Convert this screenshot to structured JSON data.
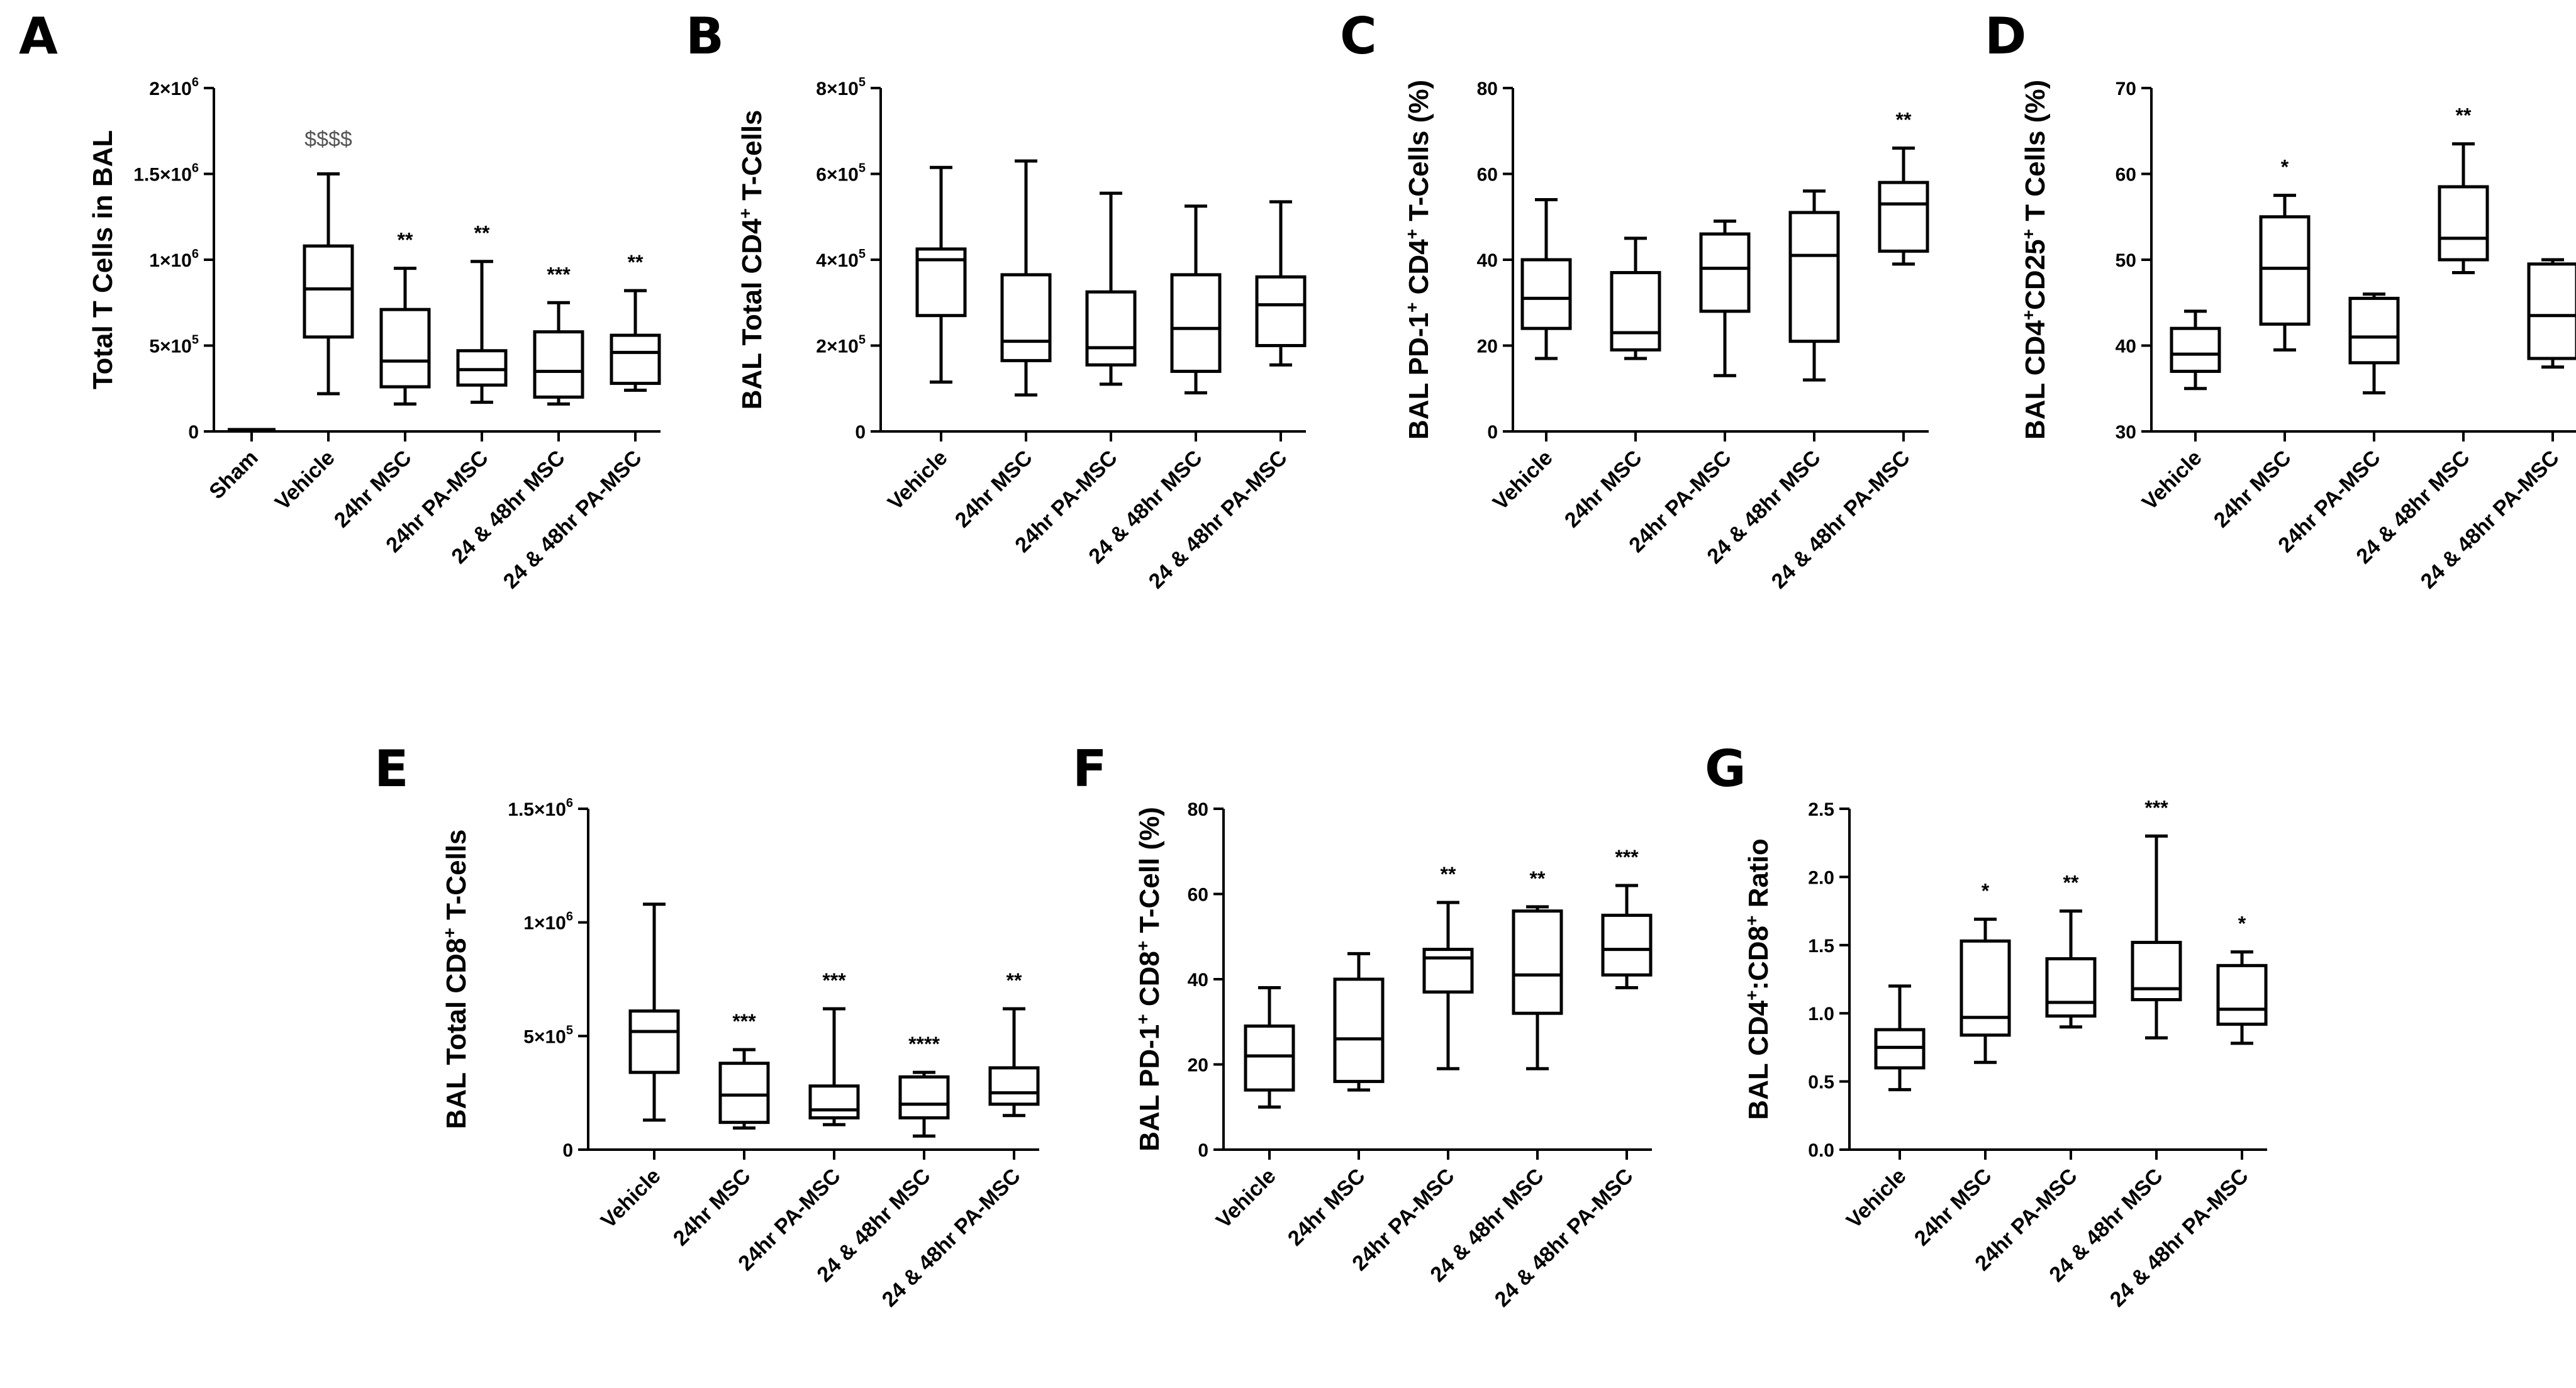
{
  "chart_data": [
    {
      "panel": "A",
      "type": "box",
      "ylabel": "Total T Cells in BAL",
      "ylim": [
        0,
        2000000
      ],
      "yticks": [
        {
          "value": 0,
          "mant": "0",
          "exp": ""
        },
        {
          "value": 500000,
          "mant": "5×10",
          "exp": "5"
        },
        {
          "value": 1000000,
          "mant": "1×10",
          "exp": "6"
        },
        {
          "value": 1500000,
          "mant": "1.5×10",
          "exp": "6"
        },
        {
          "value": 2000000,
          "mant": "2×10",
          "exp": "6"
        }
      ],
      "categories": [
        "Sham",
        "Vehicle",
        "24hr MSC",
        "24hr PA-MSC",
        "24 & 48hr MSC",
        "24 & 48hr PA-MSC"
      ],
      "boxes": [
        {
          "min": 0,
          "q1": 0,
          "median": 0,
          "q3": 0,
          "max": 0
        },
        {
          "min": 220000,
          "q1": 550000,
          "median": 830000,
          "q3": 1080000,
          "max": 1500000
        },
        {
          "min": 160000,
          "q1": 260000,
          "median": 410000,
          "q3": 710000,
          "max": 950000
        },
        {
          "min": 170000,
          "q1": 270000,
          "median": 360000,
          "q3": 470000,
          "max": 990000
        },
        {
          "min": 160000,
          "q1": 200000,
          "median": 350000,
          "q3": 580000,
          "max": 750000
        },
        {
          "min": 240000,
          "q1": 280000,
          "median": 460000,
          "q3": 560000,
          "max": 820000
        }
      ],
      "annotations": [
        "",
        "$$$$",
        "**",
        "**",
        "***",
        "**"
      ]
    },
    {
      "panel": "B",
      "type": "box",
      "ylabel": "BAL Total CD4",
      "ylabel_sup": "+",
      "ylabel_tail": " T-Cells",
      "ylim": [
        0,
        800000
      ],
      "yticks": [
        {
          "value": 0,
          "mant": "0",
          "exp": ""
        },
        {
          "value": 200000,
          "mant": "2×10",
          "exp": "5"
        },
        {
          "value": 400000,
          "mant": "4×10",
          "exp": "5"
        },
        {
          "value": 600000,
          "mant": "6×10",
          "exp": "5"
        },
        {
          "value": 800000,
          "mant": "8×10",
          "exp": "5"
        }
      ],
      "categories": [
        "Vehicle",
        "24hr MSC",
        "24hr PA-MSC",
        "24 & 48hr MSC",
        "24 & 48hr PA-MSC"
      ],
      "boxes": [
        {
          "min": 115000,
          "q1": 270000,
          "median": 400000,
          "q3": 425000,
          "max": 615000
        },
        {
          "min": 85000,
          "q1": 165000,
          "median": 210000,
          "q3": 365000,
          "max": 630000
        },
        {
          "min": 110000,
          "q1": 155000,
          "median": 195000,
          "q3": 325000,
          "max": 555000
        },
        {
          "min": 90000,
          "q1": 140000,
          "median": 240000,
          "q3": 365000,
          "max": 525000
        },
        {
          "min": 155000,
          "q1": 200000,
          "median": 295000,
          "q3": 360000,
          "max": 535000
        }
      ],
      "annotations": [
        "",
        "",
        "",
        "",
        ""
      ]
    },
    {
      "panel": "C",
      "type": "box",
      "ylabel": "BAL PD-1",
      "ylabel_sup": "+",
      "ylabel_tail": " CD4",
      "ylabel_sup2": "+",
      "ylabel_tail2": " T-Cells (%)",
      "ylim": [
        0,
        80
      ],
      "yticks": [
        {
          "value": 0,
          "mant": "0",
          "exp": ""
        },
        {
          "value": 20,
          "mant": "20",
          "exp": ""
        },
        {
          "value": 40,
          "mant": "40",
          "exp": ""
        },
        {
          "value": 60,
          "mant": "60",
          "exp": ""
        },
        {
          "value": 80,
          "mant": "80",
          "exp": ""
        }
      ],
      "categories": [
        "Vehicle",
        "24hr MSC",
        "24hr PA-MSC",
        "24 & 48hr MSC",
        "24 & 48hr PA-MSC"
      ],
      "boxes": [
        {
          "min": 17,
          "q1": 24,
          "median": 31,
          "q3": 40,
          "max": 54
        },
        {
          "min": 17,
          "q1": 19,
          "median": 23,
          "q3": 37,
          "max": 45
        },
        {
          "min": 13,
          "q1": 28,
          "median": 38,
          "q3": 46,
          "max": 49
        },
        {
          "min": 12,
          "q1": 21,
          "median": 41,
          "q3": 51,
          "max": 56
        },
        {
          "min": 39,
          "q1": 42,
          "median": 53,
          "q3": 58,
          "max": 66
        }
      ],
      "annotations": [
        "",
        "",
        "",
        "",
        "**"
      ]
    },
    {
      "panel": "D",
      "type": "box",
      "ylabel": "BAL CD4",
      "ylabel_sup": "+",
      "ylabel_tail": "CD25",
      "ylabel_sup2": "+",
      "ylabel_tail2": " T Cells (%)",
      "ylim": [
        30,
        70
      ],
      "yticks": [
        {
          "value": 30,
          "mant": "30",
          "exp": ""
        },
        {
          "value": 40,
          "mant": "40",
          "exp": ""
        },
        {
          "value": 50,
          "mant": "50",
          "exp": ""
        },
        {
          "value": 60,
          "mant": "60",
          "exp": ""
        },
        {
          "value": 70,
          "mant": "70",
          "exp": ""
        }
      ],
      "categories": [
        "Vehicle",
        "24hr MSC",
        "24hr PA-MSC",
        "24 & 48hr MSC",
        "24 & 48hr PA-MSC"
      ],
      "boxes": [
        {
          "min": 35,
          "q1": 37,
          "median": 39,
          "q3": 42,
          "max": 44
        },
        {
          "min": 39.5,
          "q1": 42.5,
          "median": 49,
          "q3": 55,
          "max": 57.5
        },
        {
          "min": 34.5,
          "q1": 38,
          "median": 41,
          "q3": 45.5,
          "max": 46
        },
        {
          "min": 48.5,
          "q1": 50,
          "median": 52.5,
          "q3": 58.5,
          "max": 63.5
        },
        {
          "min": 37.5,
          "q1": 38.5,
          "median": 43.5,
          "q3": 49.5,
          "max": 50
        }
      ],
      "annotations": [
        "",
        "*",
        "",
        "**",
        ""
      ]
    },
    {
      "panel": "E",
      "type": "box",
      "ylabel": "BAL Total CD8",
      "ylabel_sup": "+",
      "ylabel_tail": " T-Cells",
      "ylim": [
        0,
        1500000
      ],
      "yticks": [
        {
          "value": 0,
          "mant": "0",
          "exp": ""
        },
        {
          "value": 500000,
          "mant": "5×10",
          "exp": "5"
        },
        {
          "value": 1000000,
          "mant": "1×10",
          "exp": "6"
        },
        {
          "value": 1500000,
          "mant": "1.5×10",
          "exp": "6"
        }
      ],
      "categories": [
        "Vehicle",
        "24hr MSC",
        "24hr PA-MSC",
        "24 & 48hr MSC",
        "24 & 48hr PA-MSC"
      ],
      "boxes": [
        {
          "min": 130000,
          "q1": 340000,
          "median": 520000,
          "q3": 610000,
          "max": 1080000
        },
        {
          "min": 95000,
          "q1": 120000,
          "median": 240000,
          "q3": 380000,
          "max": 440000
        },
        {
          "min": 110000,
          "q1": 140000,
          "median": 175000,
          "q3": 280000,
          "max": 620000
        },
        {
          "min": 60000,
          "q1": 140000,
          "median": 200000,
          "q3": 320000,
          "max": 340000
        },
        {
          "min": 150000,
          "q1": 200000,
          "median": 250000,
          "q3": 360000,
          "max": 620000
        }
      ],
      "annotations": [
        "",
        "***",
        "***",
        "****",
        "**"
      ]
    },
    {
      "panel": "F",
      "type": "box",
      "ylabel": "BAL PD-1",
      "ylabel_sup": "+",
      "ylabel_tail": " CD8",
      "ylabel_sup2": "+",
      "ylabel_tail2": " T-Cell (%)",
      "ylim": [
        0,
        80
      ],
      "yticks": [
        {
          "value": 0,
          "mant": "0",
          "exp": ""
        },
        {
          "value": 20,
          "mant": "20",
          "exp": ""
        },
        {
          "value": 40,
          "mant": "40",
          "exp": ""
        },
        {
          "value": 60,
          "mant": "60",
          "exp": ""
        },
        {
          "value": 80,
          "mant": "80",
          "exp": ""
        }
      ],
      "categories": [
        "Vehicle",
        "24hr MSC",
        "24hr PA-MSC",
        "24 & 48hr MSC",
        "24 & 48hr PA-MSC"
      ],
      "boxes": [
        {
          "min": 10,
          "q1": 14,
          "median": 22,
          "q3": 29,
          "max": 38
        },
        {
          "min": 14,
          "q1": 16,
          "median": 26,
          "q3": 40,
          "max": 46
        },
        {
          "min": 19,
          "q1": 37,
          "median": 45,
          "q3": 47,
          "max": 58
        },
        {
          "min": 19,
          "q1": 32,
          "median": 41,
          "q3": 56,
          "max": 57
        },
        {
          "min": 38,
          "q1": 41,
          "median": 47,
          "q3": 55,
          "max": 62
        }
      ],
      "annotations": [
        "",
        "",
        "**",
        "**",
        "***"
      ]
    },
    {
      "panel": "G",
      "type": "box",
      "ylabel": "BAL CD4",
      "ylabel_sup": "+",
      "ylabel_tail": ":CD8",
      "ylabel_sup2": "+",
      "ylabel_tail2": " Ratio",
      "ylim": [
        0,
        2.5
      ],
      "yticks": [
        {
          "value": 0,
          "mant": "0.0",
          "exp": ""
        },
        {
          "value": 0.5,
          "mant": "0.5",
          "exp": ""
        },
        {
          "value": 1.0,
          "mant": "1.0",
          "exp": ""
        },
        {
          "value": 1.5,
          "mant": "1.5",
          "exp": ""
        },
        {
          "value": 2.0,
          "mant": "2.0",
          "exp": ""
        },
        {
          "value": 2.5,
          "mant": "2.5",
          "exp": ""
        }
      ],
      "categories": [
        "Vehicle",
        "24hr MSC",
        "24hr PA-MSC",
        "24 & 48hr MSC",
        "24 & 48hr PA-MSC"
      ],
      "boxes": [
        {
          "min": 0.44,
          "q1": 0.6,
          "median": 0.75,
          "q3": 0.88,
          "max": 1.2
        },
        {
          "min": 0.64,
          "q1": 0.84,
          "median": 0.97,
          "q3": 1.53,
          "max": 1.69
        },
        {
          "min": 0.9,
          "q1": 0.98,
          "median": 1.08,
          "q3": 1.4,
          "max": 1.75
        },
        {
          "min": 0.82,
          "q1": 1.1,
          "median": 1.18,
          "q3": 1.52,
          "max": 2.3
        },
        {
          "min": 0.78,
          "q1": 0.92,
          "median": 1.03,
          "q3": 1.35,
          "max": 1.45
        }
      ],
      "annotations": [
        "",
        "*",
        "**",
        "***",
        "*"
      ]
    }
  ]
}
